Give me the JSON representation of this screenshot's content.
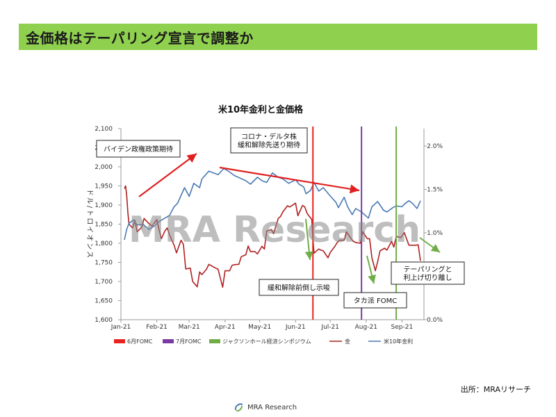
{
  "header": {
    "title": "金価格はテーパリング宣言で調整か"
  },
  "watermark": "MRA Research",
  "source_label": "出所：MRAリサーチ",
  "footer": {
    "logo_text": "MRA Research",
    "icon": "swirl-logo-icon"
  },
  "colors": {
    "header_bg": "#8fd14f",
    "gold_line": "#b02020",
    "yield_line": "#4a79b5",
    "fomc_june": "#e8231f",
    "fomc_july": "#7b3aa3",
    "jackson_hole": "#70ad47",
    "red_arrow": "#e01f1f",
    "green_arrow": "#70ad47"
  },
  "chart_data": {
    "type": "line",
    "title": "米10年金利と金価格",
    "ylabel": "ドル/トロイオンス",
    "ylim": [
      1600,
      2100
    ],
    "y2lim": [
      0.0,
      2.2
    ],
    "yticks": [
      "2,100",
      "2,050",
      "2,000",
      "1,950",
      "1,900",
      "1,850",
      "1,800",
      "1,750",
      "1,700",
      "1,650",
      "1,600"
    ],
    "y2ticks": [
      "2.0%",
      "1.5%",
      "1.0%",
      "0.5%",
      "0.0%"
    ],
    "xticks": [
      "Jan-21",
      "Feb-21",
      "Mar-21",
      "Apr-21",
      "May-21",
      "Jun-21",
      "Jul-21",
      "Aug-21",
      "Sep-21"
    ],
    "xlim": [
      "2021-01-01",
      "2021-09-20"
    ],
    "series": [
      {
        "name": "金",
        "axis": "left",
        "color": "#b02020",
        "points": [
          [
            "2021-01-04",
            1943
          ],
          [
            "2021-01-05",
            1950
          ],
          [
            "2021-01-06",
            1925
          ],
          [
            "2021-01-07",
            1880
          ],
          [
            "2021-01-08",
            1850
          ],
          [
            "2021-01-11",
            1840
          ],
          [
            "2021-01-13",
            1860
          ],
          [
            "2021-01-15",
            1830
          ],
          [
            "2021-01-19",
            1842
          ],
          [
            "2021-01-21",
            1865
          ],
          [
            "2021-01-25",
            1852
          ],
          [
            "2021-01-28",
            1845
          ],
          [
            "2021-02-01",
            1862
          ],
          [
            "2021-02-03",
            1835
          ],
          [
            "2021-02-05",
            1812
          ],
          [
            "2021-02-08",
            1832
          ],
          [
            "2021-02-10",
            1840
          ],
          [
            "2021-02-12",
            1822
          ],
          [
            "2021-02-16",
            1795
          ],
          [
            "2021-02-18",
            1775
          ],
          [
            "2021-02-22",
            1808
          ],
          [
            "2021-02-24",
            1797
          ],
          [
            "2021-02-26",
            1733
          ],
          [
            "2021-03-02",
            1735
          ],
          [
            "2021-03-04",
            1700
          ],
          [
            "2021-03-08",
            1686
          ],
          [
            "2021-03-10",
            1725
          ],
          [
            "2021-03-12",
            1718
          ],
          [
            "2021-03-16",
            1732
          ],
          [
            "2021-03-18",
            1745
          ],
          [
            "2021-03-22",
            1738
          ],
          [
            "2021-03-24",
            1735
          ],
          [
            "2021-03-26",
            1732
          ],
          [
            "2021-03-30",
            1685
          ],
          [
            "2021-04-01",
            1728
          ],
          [
            "2021-04-05",
            1728
          ],
          [
            "2021-04-07",
            1742
          ],
          [
            "2021-04-09",
            1744
          ],
          [
            "2021-04-13",
            1745
          ],
          [
            "2021-04-15",
            1765
          ],
          [
            "2021-04-19",
            1770
          ],
          [
            "2021-04-21",
            1793
          ],
          [
            "2021-04-23",
            1778
          ],
          [
            "2021-04-27",
            1778
          ],
          [
            "2021-04-29",
            1772
          ],
          [
            "2021-05-03",
            1792
          ],
          [
            "2021-05-05",
            1785
          ],
          [
            "2021-05-07",
            1832
          ],
          [
            "2021-05-11",
            1836
          ],
          [
            "2021-05-13",
            1825
          ],
          [
            "2021-05-17",
            1865
          ],
          [
            "2021-05-19",
            1870
          ],
          [
            "2021-05-21",
            1882
          ],
          [
            "2021-05-25",
            1898
          ],
          [
            "2021-05-27",
            1895
          ],
          [
            "2021-06-01",
            1905
          ],
          [
            "2021-06-03",
            1872
          ],
          [
            "2021-06-07",
            1899
          ],
          [
            "2021-06-09",
            1895
          ],
          [
            "2021-06-11",
            1878
          ],
          [
            "2021-06-15",
            1862
          ],
          [
            "2021-06-16",
            1812
          ],
          [
            "2021-06-17",
            1774
          ],
          [
            "2021-06-21",
            1785
          ],
          [
            "2021-06-23",
            1782
          ],
          [
            "2021-06-25",
            1780
          ],
          [
            "2021-06-29",
            1762
          ],
          [
            "2021-07-01",
            1776
          ],
          [
            "2021-07-05",
            1792
          ],
          [
            "2021-07-07",
            1802
          ],
          [
            "2021-07-09",
            1808
          ],
          [
            "2021-07-13",
            1808
          ],
          [
            "2021-07-15",
            1830
          ],
          [
            "2021-07-19",
            1812
          ],
          [
            "2021-07-21",
            1805
          ],
          [
            "2021-07-23",
            1802
          ],
          [
            "2021-07-27",
            1800
          ],
          [
            "2021-07-29",
            1830
          ],
          [
            "2021-08-02",
            1812
          ],
          [
            "2021-08-04",
            1812
          ],
          [
            "2021-08-06",
            1762
          ],
          [
            "2021-08-09",
            1728
          ],
          [
            "2021-08-11",
            1752
          ],
          [
            "2021-08-13",
            1780
          ],
          [
            "2021-08-17",
            1787
          ],
          [
            "2021-08-19",
            1782
          ],
          [
            "2021-08-23",
            1805
          ],
          [
            "2021-08-25",
            1790
          ],
          [
            "2021-08-27",
            1818
          ],
          [
            "2021-08-31",
            1815
          ],
          [
            "2021-09-03",
            1828
          ],
          [
            "2021-09-07",
            1795
          ],
          [
            "2021-09-09",
            1795
          ],
          [
            "2021-09-13",
            1795
          ],
          [
            "2021-09-15",
            1796
          ],
          [
            "2021-09-17",
            1754
          ]
        ]
      },
      {
        "name": "米10年金利",
        "axis": "right",
        "color": "#4a79b5",
        "points": [
          [
            "2021-01-04",
            0.92
          ],
          [
            "2021-01-06",
            1.04
          ],
          [
            "2021-01-08",
            1.11
          ],
          [
            "2021-01-12",
            1.15
          ],
          [
            "2021-01-15",
            1.09
          ],
          [
            "2021-01-20",
            1.1
          ],
          [
            "2021-01-25",
            1.04
          ],
          [
            "2021-01-29",
            1.07
          ],
          [
            "2021-02-03",
            1.13
          ],
          [
            "2021-02-08",
            1.17
          ],
          [
            "2021-02-12",
            1.2
          ],
          [
            "2021-02-16",
            1.3
          ],
          [
            "2021-02-19",
            1.34
          ],
          [
            "2021-02-25",
            1.52
          ],
          [
            "2021-03-01",
            1.42
          ],
          [
            "2021-03-05",
            1.57
          ],
          [
            "2021-03-10",
            1.52
          ],
          [
            "2021-03-12",
            1.62
          ],
          [
            "2021-03-18",
            1.71
          ],
          [
            "2021-03-22",
            1.69
          ],
          [
            "2021-03-26",
            1.67
          ],
          [
            "2021-03-31",
            1.74
          ],
          [
            "2021-04-05",
            1.7
          ],
          [
            "2021-04-09",
            1.66
          ],
          [
            "2021-04-14",
            1.63
          ],
          [
            "2021-04-19",
            1.6
          ],
          [
            "2021-04-23",
            1.56
          ],
          [
            "2021-04-29",
            1.64
          ],
          [
            "2021-05-03",
            1.6
          ],
          [
            "2021-05-07",
            1.58
          ],
          [
            "2021-05-12",
            1.69
          ],
          [
            "2021-05-17",
            1.64
          ],
          [
            "2021-05-21",
            1.62
          ],
          [
            "2021-05-26",
            1.57
          ],
          [
            "2021-06-01",
            1.61
          ],
          [
            "2021-06-04",
            1.56
          ],
          [
            "2021-06-08",
            1.53
          ],
          [
            "2021-06-10",
            1.45
          ],
          [
            "2021-06-14",
            1.49
          ],
          [
            "2021-06-17",
            1.58
          ],
          [
            "2021-06-21",
            1.48
          ],
          [
            "2021-06-25",
            1.52
          ],
          [
            "2021-06-30",
            1.44
          ],
          [
            "2021-07-06",
            1.35
          ],
          [
            "2021-07-08",
            1.29
          ],
          [
            "2021-07-13",
            1.41
          ],
          [
            "2021-07-16",
            1.3
          ],
          [
            "2021-07-20",
            1.21
          ],
          [
            "2021-07-23",
            1.28
          ],
          [
            "2021-07-28",
            1.24
          ],
          [
            "2021-08-03",
            1.17
          ],
          [
            "2021-08-06",
            1.3
          ],
          [
            "2021-08-11",
            1.36
          ],
          [
            "2021-08-16",
            1.26
          ],
          [
            "2021-08-19",
            1.24
          ],
          [
            "2021-08-24",
            1.29
          ],
          [
            "2021-08-27",
            1.31
          ],
          [
            "2021-09-01",
            1.3
          ],
          [
            "2021-09-03",
            1.33
          ],
          [
            "2021-09-07",
            1.37
          ],
          [
            "2021-09-10",
            1.34
          ],
          [
            "2021-09-14",
            1.28
          ],
          [
            "2021-09-17",
            1.37
          ]
        ]
      }
    ],
    "vlines": [
      {
        "date": "2021-06-16",
        "color": "#e8231f",
        "name": "6月FOMC"
      },
      {
        "date": "2021-07-28",
        "color": "#7b3aa3",
        "name": "7月FOMC"
      },
      {
        "date": "2021-08-27",
        "color": "#70ad47",
        "name": "ジャクソンホール経済シンポジウム"
      }
    ],
    "legend": [
      {
        "label": "6月FOMC",
        "kind": "bar",
        "color": "#e8231f"
      },
      {
        "label": "7月FOMC",
        "kind": "bar",
        "color": "#7b3aa3"
      },
      {
        "label": "ジャクソンホール経済シンポジウム",
        "kind": "bar",
        "color": "#70ad47"
      },
      {
        "label": "金",
        "kind": "line",
        "color": "#b02020"
      },
      {
        "label": "米10年金利",
        "kind": "line",
        "color": "#4a79b5"
      }
    ],
    "annotations": [
      {
        "lines": [
          "バイデン政権政策期待"
        ]
      },
      {
        "lines": [
          "コロナ・デルタ株",
          "緩和解除先送り期待"
        ]
      },
      {
        "lines": [
          "緩和解除前倒し示唆"
        ]
      },
      {
        "lines": [
          "タカ派 FOMC"
        ]
      },
      {
        "lines": [
          "テーパリングと",
          "利上げ切り離し"
        ]
      }
    ],
    "grid": false,
    "legend_position": "bottom"
  }
}
